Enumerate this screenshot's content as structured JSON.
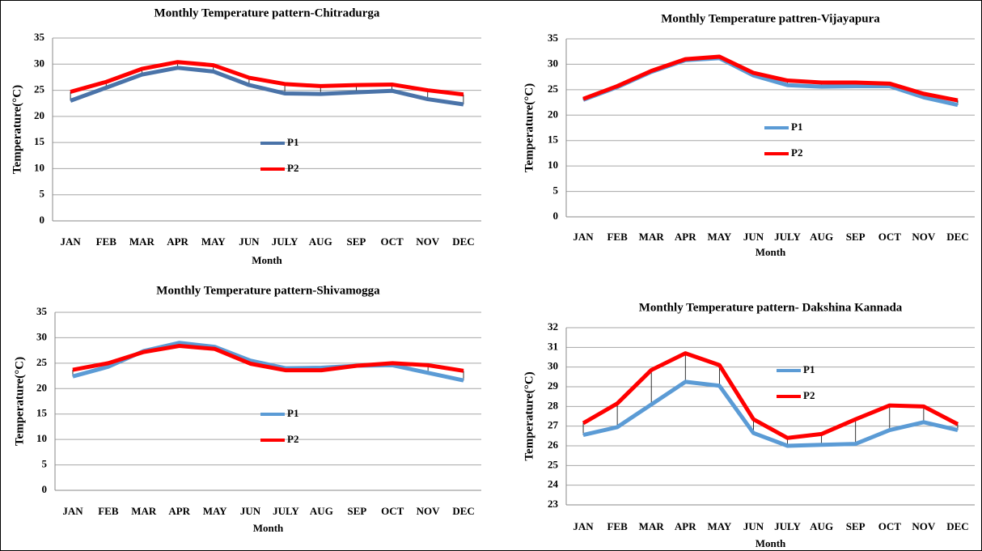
{
  "chart_data": [
    {
      "type": "line",
      "title": "Monthly Temperature pattern-Chitradurga",
      "x_label": "Month",
      "y_label": "Temperature(°C)",
      "categories": [
        "JAN",
        "FEB",
        "MAR",
        "APR",
        "MAY",
        "JUN",
        "JULY",
        "AUG",
        "SEP",
        "OCT",
        "NOV",
        "DEC"
      ],
      "series": [
        {
          "name": "P1",
          "color": "#4a73a8",
          "values": [
            23,
            25.5,
            28,
            29.3,
            28.6,
            26,
            24.4,
            24.3,
            24.6,
            24.9,
            23.3,
            22.3
          ]
        },
        {
          "name": "P2",
          "color": "#ff0000",
          "values": [
            24.7,
            26.6,
            29.1,
            30.4,
            29.8,
            27.4,
            26.2,
            25.8,
            26,
            26.1,
            25,
            24.2
          ]
        }
      ],
      "ylim": [
        0,
        35
      ],
      "yticks": [
        0,
        5,
        10,
        15,
        20,
        25,
        30,
        35
      ],
      "grid": true,
      "legend": "center"
    },
    {
      "type": "line",
      "title": "Monthly Temperature pattren-Vijayapura",
      "x_label": "Month",
      "y_label": "Temperature(°C)",
      "categories": [
        "JAN",
        "FEB",
        "MAR",
        "APR",
        "MAY",
        "JUN",
        "JULY",
        "AUG",
        "SEP",
        "OCT",
        "NOV",
        "DEC"
      ],
      "series": [
        {
          "name": "P1",
          "color": "#5b9bd5",
          "values": [
            23,
            25.5,
            28.5,
            30.8,
            31.2,
            27.8,
            25.9,
            25.6,
            25.7,
            25.7,
            23.5,
            22
          ]
        },
        {
          "name": "P2",
          "color": "#ff0000",
          "values": [
            23.2,
            25.7,
            28.7,
            31,
            31.5,
            28.3,
            26.8,
            26.4,
            26.4,
            26.2,
            24.2,
            22.9
          ]
        }
      ],
      "ylim": [
        0,
        35
      ],
      "yticks": [
        0,
        5,
        10,
        15,
        20,
        25,
        30,
        35
      ],
      "grid": true,
      "legend": "center"
    },
    {
      "type": "line",
      "title": "Monthly Temperature pattern-Shivamogga",
      "x_label": "Month",
      "y_label": "Temperature(°C)",
      "categories": [
        "JAN",
        "FEB",
        "MAR",
        "APR",
        "MAY",
        "JUN",
        "JULY",
        "AUG",
        "SEP",
        "OCT",
        "NOV",
        "DEC"
      ],
      "series": [
        {
          "name": "P1",
          "color": "#5b9bd5",
          "values": [
            22.4,
            24.3,
            27.4,
            29,
            28.2,
            25.5,
            24,
            24.1,
            24.5,
            24.6,
            23.1,
            21.6
          ]
        },
        {
          "name": "P2",
          "color": "#ff0000",
          "values": [
            23.7,
            25,
            27.2,
            28.4,
            27.8,
            24.9,
            23.6,
            23.6,
            24.5,
            25,
            24.6,
            23.5
          ]
        }
      ],
      "ylim": [
        0,
        35
      ],
      "yticks": [
        0,
        5,
        10,
        15,
        20,
        25,
        30,
        35
      ],
      "grid": true,
      "legend": "center"
    },
    {
      "type": "line",
      "title": "Monthly Temperature pattern- Dakshina Kannada",
      "x_label": "Month",
      "y_label": "Temperature(°C)",
      "categories": [
        "JAN",
        "FEB",
        "MAR",
        "APR",
        "MAY",
        "JUN",
        "JULY",
        "AUG",
        "SEP",
        "OCT",
        "NOV",
        "DEC"
      ],
      "series": [
        {
          "name": "P1",
          "color": "#5b9bd5",
          "values": [
            26.55,
            26.95,
            28.1,
            29.25,
            29.05,
            26.65,
            26,
            26.05,
            26.1,
            26.8,
            27.2,
            26.8
          ]
        },
        {
          "name": "P2",
          "color": "#ff0000",
          "values": [
            27.15,
            28.15,
            29.85,
            30.7,
            30.1,
            27.35,
            26.4,
            26.6,
            27.35,
            28.05,
            28,
            27.1
          ]
        }
      ],
      "ylim": [
        23,
        32
      ],
      "yticks": [
        23,
        24,
        25,
        26,
        27,
        28,
        29,
        30,
        31,
        32
      ],
      "grid": true,
      "legend": "center"
    }
  ]
}
